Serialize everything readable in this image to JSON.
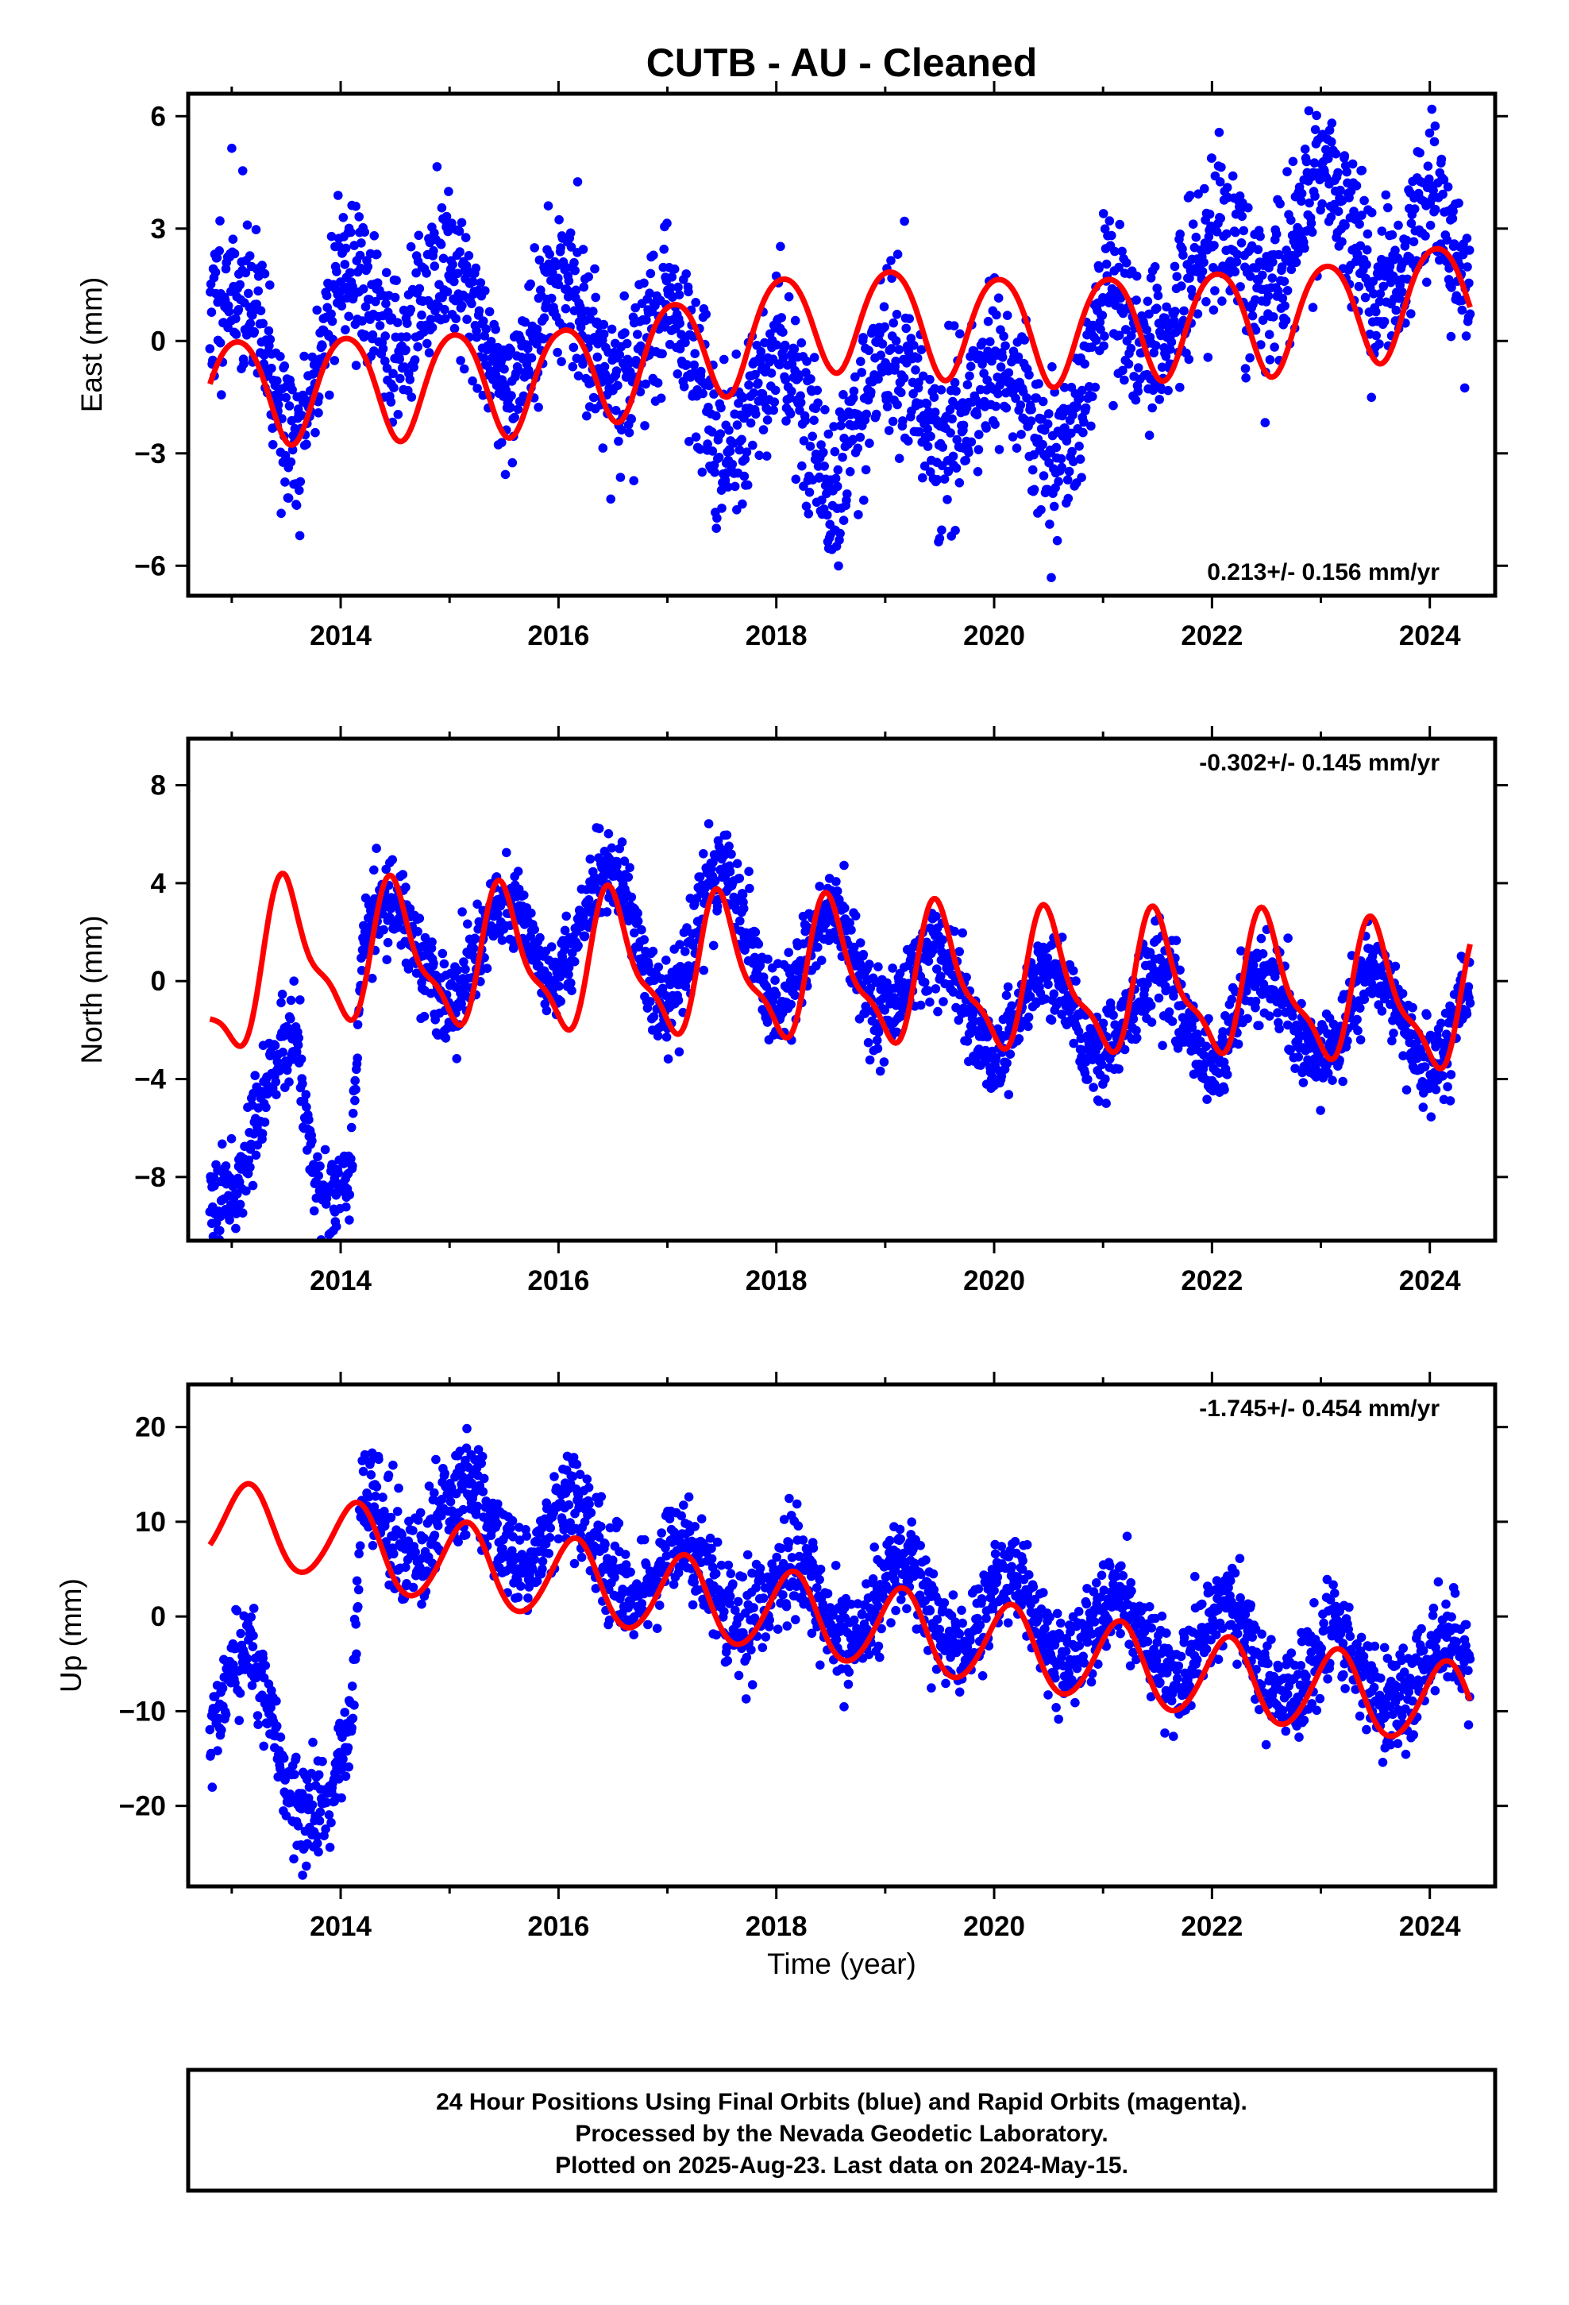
{
  "title": "CUTB  - AU - Cleaned",
  "xlabel": "Time (year)",
  "colors": {
    "points": "#0000ff",
    "model": "#ff0000",
    "frame": "#000000"
  },
  "footer": {
    "line1": "24 Hour Positions Using Final Orbits (blue) and Rapid Orbits (magenta).",
    "line2": "Processed by the Nevada Geodetic Laboratory.",
    "line3": "Plotted on 2025-Aug-23. Last data on 2024-May-15."
  },
  "chart_data": [
    {
      "type": "scatter",
      "ylabel": "East (mm)",
      "rate_label": "0.213+/- 0.156 mm/yr",
      "rate_position": "bottom-right",
      "xlim": [
        2012.6,
        2024.6
      ],
      "ylim": [
        -6.8,
        6.6
      ],
      "xticks": [
        2014,
        2016,
        2018,
        2020,
        2022,
        2024
      ],
      "yticks": [
        6,
        3,
        0,
        -3,
        -6
      ],
      "ytick_labels": [
        "6",
        "3",
        "0",
        "−3",
        "−6"
      ],
      "x_range": [
        2012.8,
        2024.37
      ],
      "trend": {
        "rate": 0.213,
        "offset": 0.0
      },
      "model": {
        "offset": 0.0,
        "steps": [],
        "annual": {
          "amp": 1.4,
          "peak": 0.05
        },
        "semiannual": {
          "amp": 0.15,
          "peak": 0.3
        },
        "anchor": [
          [
            2012.8,
            -1.3
          ],
          [
            2016.0,
            -1.0
          ],
          [
            2018.5,
            0.7
          ],
          [
            2020.5,
            0.3
          ],
          [
            2021.7,
            0.5
          ],
          [
            2022.7,
            0.6
          ],
          [
            2023.7,
            1.0
          ],
          [
            2024.37,
            1.4
          ]
        ]
      },
      "point_level": [
        [
          2012.8,
          0.8
        ],
        [
          2013.2,
          0.5
        ],
        [
          2013.6,
          -2.3
        ],
        [
          2014.0,
          1.3
        ],
        [
          2014.5,
          0.6
        ],
        [
          2015.0,
          1.5
        ],
        [
          2015.5,
          -0.5
        ],
        [
          2016.0,
          1.0
        ],
        [
          2016.5,
          -0.6
        ],
        [
          2017.0,
          0.3
        ],
        [
          2017.5,
          -2.2
        ],
        [
          2018.0,
          -0.8
        ],
        [
          2018.5,
          -3.0
        ],
        [
          2019.0,
          -0.7
        ],
        [
          2019.5,
          -2.4
        ],
        [
          2019.8,
          -1.4
        ],
        [
          2020.0,
          -1.3
        ],
        [
          2020.5,
          -2.2
        ],
        [
          2020.8,
          -1.8
        ],
        [
          2021.0,
          0.2
        ],
        [
          2021.5,
          0.5
        ],
        [
          2022.0,
          2.0
        ],
        [
          2022.5,
          1.8
        ],
        [
          2023.0,
          3.8
        ],
        [
          2023.5,
          2.0
        ],
        [
          2024.0,
          3.0
        ],
        [
          2024.37,
          1.5
        ]
      ],
      "point_seasonal": {
        "amp": 0.8,
        "peak": 0.05
      },
      "noise": 1.05,
      "seed": 11
    },
    {
      "type": "scatter",
      "ylabel": "North (mm)",
      "rate_label": "-0.302+/- 0.145 mm/yr",
      "rate_position": "top-right",
      "xlim": [
        2012.6,
        2024.6
      ],
      "ylim": [
        -10.6,
        9.9
      ],
      "xticks": [
        2014,
        2016,
        2018,
        2020,
        2022,
        2024
      ],
      "yticks": [
        8,
        4,
        0,
        -4,
        -8
      ],
      "ytick_labels": [
        "8",
        "4",
        "0",
        "−4",
        "−8"
      ],
      "x_range": [
        2012.8,
        2024.37
      ],
      "trend": {
        "rate": -0.302,
        "offset": 0.0
      },
      "model": {
        "offset": 0.4,
        "steps": [],
        "annual": {
          "amp": 2.6,
          "peak": 0.5
        },
        "semiannual": {
          "amp": 0.9,
          "peak": 0.42
        },
        "anchor": [
          [
            2012.8,
            -0.8
          ],
          [
            2013.5,
            1.2
          ],
          [
            2014.5,
            1.0
          ],
          [
            2016.5,
            0.6
          ],
          [
            2018.5,
            0.3
          ],
          [
            2020.5,
            -0.2
          ],
          [
            2022.5,
            -0.3
          ],
          [
            2024.37,
            -1.0
          ]
        ]
      },
      "point_level": [
        [
          2012.8,
          -7.5
        ],
        [
          2013.3,
          -5.5
        ],
        [
          2013.6,
          -3.5
        ],
        [
          2013.75,
          -7.5
        ],
        [
          2014.1,
          -6.8
        ],
        [
          2014.2,
          2.0
        ],
        [
          2015.0,
          0.8
        ],
        [
          2016.0,
          2.0
        ],
        [
          2016.5,
          3.0
        ],
        [
          2017.0,
          0.5
        ],
        [
          2017.5,
          3.0
        ],
        [
          2018.0,
          0.5
        ],
        [
          2018.5,
          1.0
        ],
        [
          2019.0,
          0.5
        ],
        [
          2020.0,
          -1.3
        ],
        [
          2021.0,
          -1.4
        ],
        [
          2022.0,
          -1.6
        ],
        [
          2023.0,
          -1.5
        ],
        [
          2024.37,
          -1.5
        ]
      ],
      "point_seasonal": {
        "amp": 1.8,
        "peak": 0.48
      },
      "noise": 0.9,
      "seed": 23
    },
    {
      "type": "scatter",
      "ylabel": "Up (mm)",
      "rate_label": "-1.745+/- 0.454 mm/yr",
      "rate_position": "top-right",
      "xlim": [
        2012.6,
        2024.6
      ],
      "ylim": [
        -28.5,
        24.5
      ],
      "xticks": [
        2014,
        2016,
        2018,
        2020,
        2022,
        2024
      ],
      "yticks": [
        20,
        10,
        0,
        -10,
        -20
      ],
      "ytick_labels": [
        "20",
        "10",
        "0",
        "−10",
        "−20"
      ],
      "x_range": [
        2012.8,
        2024.37
      ],
      "trend": {
        "rate": -1.745,
        "offset": 0.0
      },
      "model": {
        "offset": 0.0,
        "steps": [],
        "annual": {
          "amp": 4.3,
          "peak": 0.15
        },
        "semiannual": {
          "amp": 0.3,
          "peak": 0.2
        },
        "anchor": [
          [
            2012.8,
            10.0
          ],
          [
            2013.8,
            8.5
          ],
          [
            2014.5,
            6.5
          ],
          [
            2016.0,
            4.0
          ],
          [
            2018.0,
            0.5
          ],
          [
            2020.0,
            -3.0
          ],
          [
            2022.0,
            -6.5
          ],
          [
            2024.37,
            -9.5
          ]
        ]
      },
      "point_level": [
        [
          2012.8,
          -11.0
        ],
        [
          2013.2,
          -7.0
        ],
        [
          2013.5,
          -16.0
        ],
        [
          2013.9,
          -19.0
        ],
        [
          2014.1,
          -16.0
        ],
        [
          2014.2,
          10.0
        ],
        [
          2015.0,
          10.0
        ],
        [
          2016.0,
          9.0
        ],
        [
          2017.0,
          4.0
        ],
        [
          2018.0,
          2.0
        ],
        [
          2019.0,
          1.0
        ],
        [
          2020.0,
          0.5
        ],
        [
          2021.0,
          -1.5
        ],
        [
          2022.0,
          -3.5
        ],
        [
          2023.0,
          -5.5
        ],
        [
          2024.37,
          -6.5
        ]
      ],
      "point_seasonal": {
        "amp": 4.0,
        "peak": 0.15
      },
      "noise": 2.6,
      "seed": 37
    }
  ]
}
